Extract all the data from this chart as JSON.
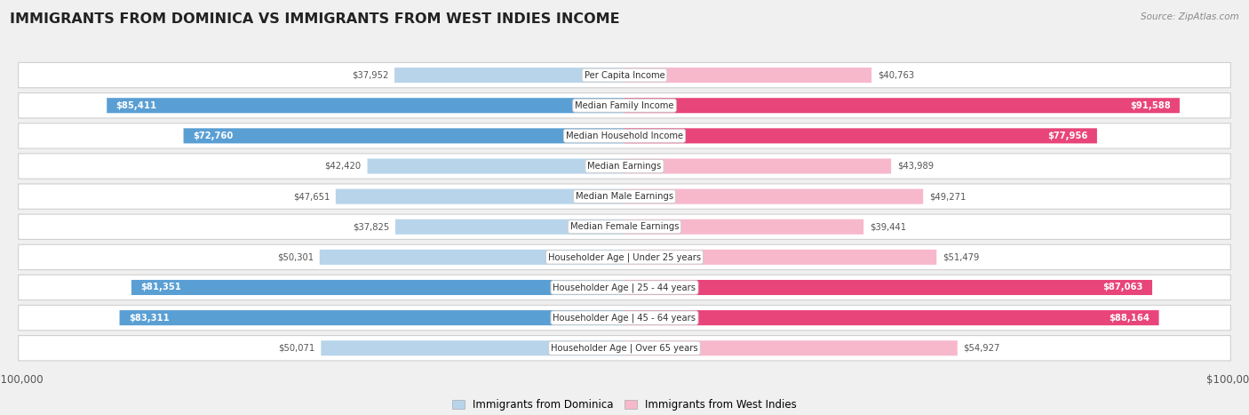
{
  "title": "IMMIGRANTS FROM DOMINICA VS IMMIGRANTS FROM WEST INDIES INCOME",
  "source": "Source: ZipAtlas.com",
  "categories": [
    "Per Capita Income",
    "Median Family Income",
    "Median Household Income",
    "Median Earnings",
    "Median Male Earnings",
    "Median Female Earnings",
    "Householder Age | Under 25 years",
    "Householder Age | 25 - 44 years",
    "Householder Age | 45 - 64 years",
    "Householder Age | Over 65 years"
  ],
  "dominica_values": [
    37952,
    85411,
    72760,
    42420,
    47651,
    37825,
    50301,
    81351,
    83311,
    50071
  ],
  "west_indies_values": [
    40763,
    91588,
    77956,
    43989,
    49271,
    39441,
    51479,
    87063,
    88164,
    54927
  ],
  "dominica_labels": [
    "$37,952",
    "$85,411",
    "$72,760",
    "$42,420",
    "$47,651",
    "$37,825",
    "$50,301",
    "$81,351",
    "$83,311",
    "$50,071"
  ],
  "west_indies_labels": [
    "$40,763",
    "$91,588",
    "$77,956",
    "$43,989",
    "$49,271",
    "$39,441",
    "$51,479",
    "$87,063",
    "$88,164",
    "$54,927"
  ],
  "dominica_color_light": "#b8d4ea",
  "dominica_color_dark": "#5a9fd4",
  "west_indies_color_light": "#f7b8cc",
  "west_indies_color_dark": "#e8457a",
  "dark_threshold": 65000,
  "max_value": 100000,
  "background_color": "#f0f0f0",
  "row_color": "#ffffff",
  "row_border_color": "#d0d0d0",
  "legend_dominica": "Immigrants from Dominica",
  "legend_west_indies": "Immigrants from West Indies"
}
